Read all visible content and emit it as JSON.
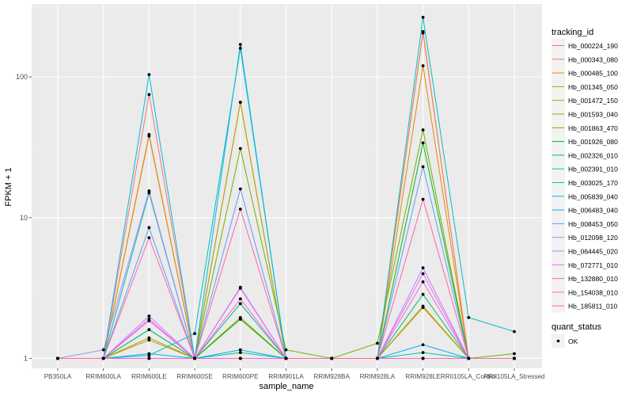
{
  "chart_data": {
    "type": "line",
    "xlabel": "sample_name",
    "ylabel": "FPKM + 1",
    "y_scale": "log10",
    "ylim": [
      0.85,
      330
    ],
    "y_ticks": [
      1,
      10,
      100
    ],
    "y_tick_labels": [
      "1",
      "10",
      "100"
    ],
    "grid": true,
    "panel_background": "#ebebeb",
    "categories": [
      "PB350LA",
      "RRIM600LA",
      "RRIM600LE",
      "RRIM600SE",
      "RRIM600PE",
      "RRIM901LA",
      "RRIM928BA",
      "RRIM928LA",
      "RRIM928LE",
      "RRII105LA_Control",
      "RRII105LA_Stressed"
    ],
    "legend_position": "right",
    "legend_title": "tracking_id",
    "shape_legend_title": "quant_status",
    "shape_legend_label": "OK",
    "series": [
      {
        "name": "Hb_000224_190",
        "color": "#F8766D",
        "values": [
          1.0,
          1.0,
          75,
          1.0,
          1.0,
          1.0,
          1.0,
          1.0,
          210,
          1.0,
          1.0
        ]
      },
      {
        "name": "Hb_000343_080",
        "color": "#F07F4A",
        "values": [
          1.0,
          1.0,
          38,
          1.0,
          1.0,
          1.0,
          1.0,
          1.0,
          205,
          1.0,
          1.0
        ]
      },
      {
        "name": "Hb_000485_100",
        "color": "#E18A00",
        "values": [
          1.0,
          1.0,
          39,
          1.0,
          66,
          1.0,
          1.0,
          1.0,
          120,
          1.0,
          1.0
        ]
      },
      {
        "name": "Hb_001345_050",
        "color": "#CD9600",
        "values": [
          1.0,
          1.0,
          1.35,
          1.0,
          1.9,
          1.0,
          1.0,
          1.0,
          2.3,
          1.0,
          1.0
        ]
      },
      {
        "name": "Hb_001472_150",
        "color": "#B5A000",
        "values": [
          1.0,
          1.0,
          1.0,
          1.0,
          66,
          1.0,
          1.0,
          1.0,
          1.0,
          1.0,
          1.0
        ]
      },
      {
        "name": "Hb_001593_040",
        "color": "#99A800",
        "values": [
          1.0,
          1.0,
          1.4,
          1.0,
          1.95,
          1.0,
          1.0,
          1.0,
          2.35,
          1.0,
          1.0
        ]
      },
      {
        "name": "Hb_001863_470",
        "color": "#72B000",
        "values": [
          1.0,
          1.0,
          1.0,
          1.0,
          31,
          1.15,
          1.0,
          1.28,
          42,
          1.0,
          1.08
        ]
      },
      {
        "name": "Hb_001926_080",
        "color": "#00B81F",
        "values": [
          1.0,
          1.0,
          1.6,
          1.0,
          1.9,
          1.0,
          1.0,
          1.0,
          34,
          1.0,
          1.0
        ]
      },
      {
        "name": "Hb_002326_010",
        "color": "#00BE6C",
        "values": [
          1.0,
          1.0,
          1.6,
          1.0,
          2.45,
          1.0,
          1.0,
          1.0,
          2.85,
          1.0,
          1.0
        ]
      },
      {
        "name": "Hb_002391_010",
        "color": "#00C19A",
        "values": [
          1.0,
          1.0,
          15,
          1.0,
          1.1,
          1.0,
          1.0,
          1.0,
          1.1,
          1.0,
          1.0
        ]
      },
      {
        "name": "Hb_003025_170",
        "color": "#00BFC4",
        "values": [
          1.0,
          1.0,
          1.05,
          1.5,
          160,
          1.0,
          1.0,
          1.0,
          265,
          1.95,
          1.55
        ]
      },
      {
        "name": "Hb_005839_040",
        "color": "#00B9E3",
        "values": [
          1.0,
          1.0,
          104,
          1.0,
          170,
          1.0,
          1.0,
          1.0,
          1.0,
          1.0,
          1.0
        ]
      },
      {
        "name": "Hb_006483_040",
        "color": "#00ADFA",
        "values": [
          1.0,
          1.0,
          1.08,
          1.0,
          1.15,
          1.0,
          1.0,
          1.0,
          1.25,
          1.0,
          1.0
        ]
      },
      {
        "name": "Hb_008453_050",
        "color": "#619CFF",
        "values": [
          1.0,
          1.0,
          8.5,
          1.0,
          16,
          1.0,
          1.0,
          1.0,
          23,
          1.0,
          1.0
        ]
      },
      {
        "name": "Hb_012098_120",
        "color": "#9F8CFF",
        "values": [
          1.0,
          1.15,
          15.5,
          1.0,
          1.0,
          1.0,
          1.0,
          1.0,
          1.0,
          1.0,
          1.0
        ]
      },
      {
        "name": "Hb_064445_020",
        "color": "#C77CFF",
        "values": [
          1.0,
          1.0,
          2.0,
          1.0,
          3.2,
          1.0,
          1.0,
          1.0,
          4.4,
          1.0,
          1.0
        ]
      },
      {
        "name": "Hb_072771_010",
        "color": "#E76BF3",
        "values": [
          1.0,
          1.0,
          1.9,
          1.0,
          3.15,
          1.0,
          1.0,
          1.0,
          4.0,
          1.0,
          1.0
        ]
      },
      {
        "name": "Hb_132880_010",
        "color": "#F564E3",
        "values": [
          1.0,
          1.0,
          1.85,
          1.0,
          2.65,
          1.0,
          1.0,
          1.0,
          3.5,
          1.0,
          1.0
        ]
      },
      {
        "name": "Hb_154038_010",
        "color": "#FD61D1",
        "values": [
          1.0,
          1.0,
          1.0,
          1.0,
          1.0,
          1.0,
          1.0,
          1.0,
          1.0,
          1.0,
          1.0
        ]
      },
      {
        "name": "Hb_185811_010",
        "color": "#FF67A4",
        "values": [
          1.0,
          1.0,
          7.2,
          1.0,
          11.5,
          1.0,
          1.0,
          1.0,
          13.5,
          1.0,
          1.0
        ]
      }
    ]
  }
}
